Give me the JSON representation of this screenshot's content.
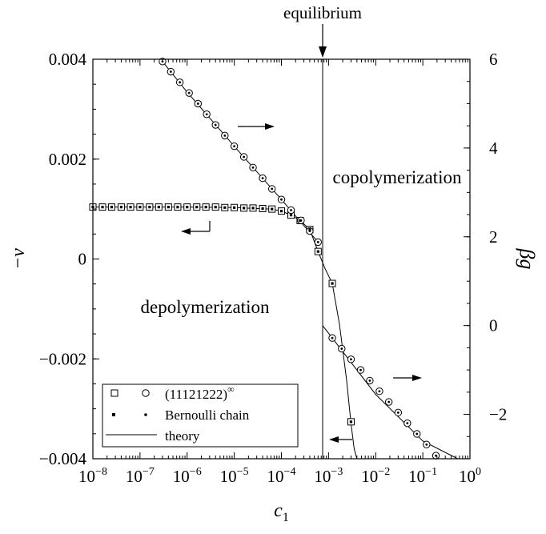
{
  "chart_data": {
    "type": "scatter",
    "x_scale": "log",
    "xlim": [
      1e-08,
      1
    ],
    "ylim_left": [
      -0.004,
      0.004
    ],
    "ylim_right": [
      -3,
      6
    ],
    "xlabel": "c",
    "xlabel_sub": "1",
    "ylabel_left": "−v",
    "ylabel_right": "βg",
    "x_ticks": [
      {
        "value": 1e-08,
        "base": "10",
        "exp": "−8"
      },
      {
        "value": 1e-07,
        "base": "10",
        "exp": "−7"
      },
      {
        "value": 1e-06,
        "base": "10",
        "exp": "−6"
      },
      {
        "value": 1e-05,
        "base": "10",
        "exp": "−5"
      },
      {
        "value": 0.0001,
        "base": "10",
        "exp": "−4"
      },
      {
        "value": 0.001,
        "base": "10",
        "exp": "−3"
      },
      {
        "value": 0.01,
        "base": "10",
        "exp": "−2"
      },
      {
        "value": 0.1,
        "base": "10",
        "exp": "−1"
      },
      {
        "value": 1,
        "base": "10",
        "exp": "0"
      }
    ],
    "y_left_ticks": [
      {
        "value": 0.004,
        "label": "0.004"
      },
      {
        "value": 0.002,
        "label": "0.002"
      },
      {
        "value": 0,
        "label": "0"
      },
      {
        "value": -0.002,
        "label": "−0.002"
      },
      {
        "value": -0.004,
        "label": "−0.004"
      }
    ],
    "y_right_ticks": [
      {
        "value": 6,
        "label": "6"
      },
      {
        "value": 4,
        "label": "4"
      },
      {
        "value": 2,
        "label": "2"
      },
      {
        "value": 0,
        "label": "0"
      },
      {
        "value": -2,
        "label": "−2"
      }
    ],
    "equilibrium_x": 0.00075,
    "annotations": {
      "equilibrium": "equilibrium",
      "copolymerization": "copolymerization",
      "depolymerization": "depolymerization"
    },
    "legend": {
      "placement": "bottom-left",
      "entries": [
        {
          "label": "(11121222)",
          "sup": "∞",
          "marker": "square-circle"
        },
        {
          "label": "Bernoulli chain",
          "marker": "dots"
        },
        {
          "label": "theory",
          "marker": "line"
        }
      ]
    },
    "series": [
      {
        "name": "(11121222)∞ −v",
        "axis": "left",
        "marker": "square",
        "x": [
          1e-08,
          1.6e-08,
          2.5e-08,
          4e-08,
          6.3e-08,
          1e-07,
          1.6e-07,
          2.5e-07,
          4e-07,
          6.3e-07,
          1e-06,
          1.6e-06,
          2.5e-06,
          4e-06,
          6.3e-06,
          1e-05,
          1.6e-05,
          2.5e-05,
          4e-05,
          6.3e-05,
          0.0001,
          0.00016,
          0.00025,
          0.0004,
          0.0006,
          0.0012,
          0.003
        ],
        "y": [
          0.00104,
          0.00104,
          0.00104,
          0.00104,
          0.00104,
          0.00104,
          0.00104,
          0.00104,
          0.00104,
          0.00104,
          0.00104,
          0.00104,
          0.00104,
          0.00104,
          0.00103,
          0.00103,
          0.00102,
          0.00102,
          0.00101,
          0.001,
          0.00096,
          0.00088,
          0.00077,
          0.00059,
          0.00015,
          -0.00049,
          -0.00326
        ]
      },
      {
        "name": "(11121222)∞ βg",
        "axis": "right",
        "marker": "circle",
        "x": [
          3e-07,
          4.5e-07,
          7e-07,
          1.1e-06,
          1.7e-06,
          2.6e-06,
          4e-06,
          6.3e-06,
          1e-05,
          1.6e-05,
          2.5e-05,
          4e-05,
          6.3e-05,
          0.0001,
          0.00016,
          0.00026,
          0.0004,
          0.0006,
          0.0012,
          0.0019,
          0.003,
          0.0048,
          0.0075,
          0.012,
          0.019,
          0.03,
          0.047,
          0.075,
          0.12,
          0.19,
          0.3,
          0.55
        ],
        "y": [
          5.95,
          5.72,
          5.48,
          5.24,
          5.0,
          4.76,
          4.52,
          4.28,
          4.04,
          3.8,
          3.56,
          3.32,
          3.08,
          2.84,
          2.6,
          2.37,
          2.13,
          1.88,
          -0.28,
          -0.52,
          -0.76,
          -1.0,
          -1.24,
          -1.48,
          -1.72,
          -1.96,
          -2.2,
          -2.44,
          -2.68,
          -2.93,
          -3.17,
          -3.41
        ]
      },
      {
        "name": "Bernoulli chain −v",
        "axis": "left",
        "marker": "dots",
        "x": [
          1e-08,
          1.6e-08,
          2.5e-08,
          4e-08,
          6.3e-08,
          1e-07,
          1.6e-07,
          2.5e-07,
          4e-07,
          6.3e-07,
          1e-06,
          1.6e-06,
          2.5e-06,
          4e-06,
          6.3e-06,
          1e-05,
          1.6e-05,
          2.5e-05,
          4e-05,
          6.3e-05,
          0.0001,
          0.00016,
          0.00025,
          0.0004,
          0.0006,
          0.0012,
          0.003
        ],
        "y": [
          0.00104,
          0.00104,
          0.00104,
          0.00104,
          0.00104,
          0.00104,
          0.00104,
          0.00104,
          0.00104,
          0.00104,
          0.00104,
          0.00104,
          0.00104,
          0.00104,
          0.00103,
          0.00103,
          0.00102,
          0.00102,
          0.00101,
          0.001,
          0.00096,
          0.00088,
          0.00077,
          0.00059,
          0.00015,
          -0.00049,
          -0.00326
        ]
      },
      {
        "name": "theory −v",
        "axis": "left",
        "marker": "line",
        "x": [
          1e-08,
          1e-07,
          1e-06,
          1e-05,
          3e-05,
          6e-05,
          0.0001,
          0.00016,
          0.00025,
          0.0004,
          0.0006,
          0.00085,
          0.0012,
          0.0017,
          0.0024,
          0.003,
          0.0035,
          0.004
        ],
        "y": [
          0.00104,
          0.00104,
          0.00104,
          0.00103,
          0.00101,
          0.001,
          0.00096,
          0.00088,
          0.00077,
          0.00059,
          0.00015,
          -0.0002,
          -0.00049,
          -0.0013,
          -0.0024,
          -0.0033,
          -0.0038,
          -0.0041
        ]
      },
      {
        "name": "theory βg (c1 below equilibrium)",
        "axis": "right",
        "marker": "line",
        "x": [
          3e-07,
          1e-06,
          1e-05,
          0.0001,
          0.0006
        ],
        "y": [
          5.95,
          5.26,
          4.04,
          2.84,
          1.88
        ]
      },
      {
        "name": "theory βg (c1 above equilibrium)",
        "axis": "right",
        "marker": "line",
        "x": [
          0.00075,
          0.0012,
          0.01,
          0.1,
          0.55
        ],
        "y": [
          0.0,
          -0.28,
          -1.55,
          -2.6,
          -3.41
        ]
      }
    ]
  }
}
